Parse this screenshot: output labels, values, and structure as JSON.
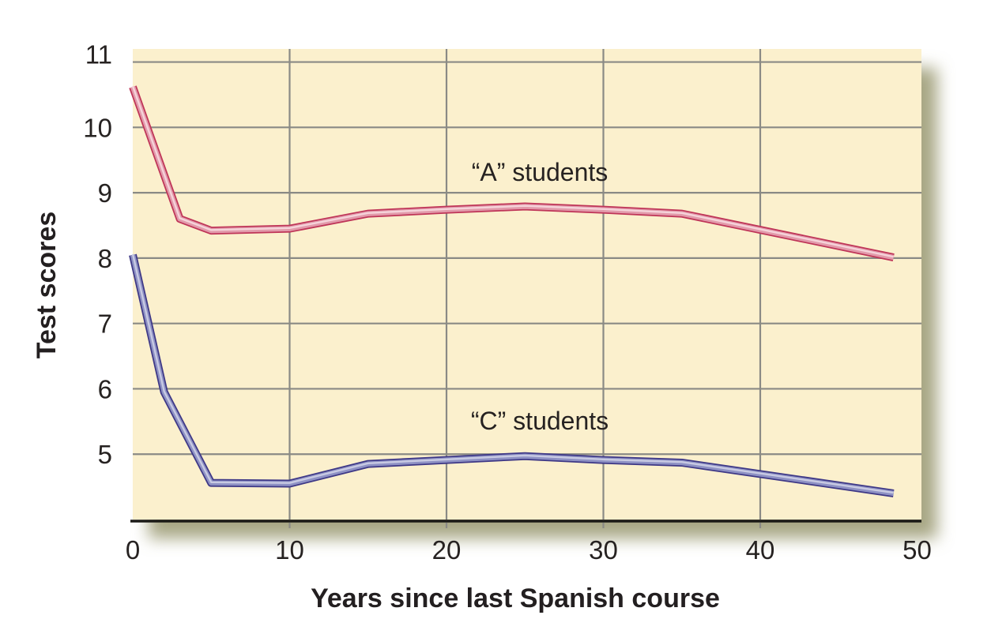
{
  "chart_data": {
    "type": "line",
    "title": "",
    "xlabel": "Years since last Spanish course",
    "ylabel": "Test scores",
    "xlim": [
      0,
      50
    ],
    "ylim": [
      4,
      11.2
    ],
    "xticks": [
      0,
      10,
      20,
      30,
      40,
      50
    ],
    "yticks": [
      5,
      6,
      7,
      8,
      9,
      10,
      11
    ],
    "grid": true,
    "legend_position": "inline-annotations",
    "plot_background": "#FBF0CD",
    "gridline_color": "#8A8A85",
    "axis_line_color": "#1B1A16",
    "text_color": "#262221",
    "shadow_color": "#98976F",
    "series": [
      {
        "name": "“A” students",
        "color": {
          "outer": "#BF3558",
          "mid": "#E29AAA",
          "light": "#F5D3DA"
        },
        "points": [
          [
            0,
            10.62
          ],
          [
            3,
            8.6
          ],
          [
            5,
            8.42
          ],
          [
            10,
            8.45
          ],
          [
            15,
            8.68
          ],
          [
            20,
            8.74
          ],
          [
            25,
            8.79
          ],
          [
            30,
            8.74
          ],
          [
            35,
            8.68
          ],
          [
            48.5,
            8.01
          ]
        ]
      },
      {
        "name": "“C” students",
        "color": {
          "outer": "#3E3886",
          "mid": "#8E91C4",
          "light": "#C8CAE3"
        },
        "points": [
          [
            0,
            8.05
          ],
          [
            2,
            5.95
          ],
          [
            5,
            4.56
          ],
          [
            10,
            4.55
          ],
          [
            15,
            4.85
          ],
          [
            20,
            4.91
          ],
          [
            25,
            4.97
          ],
          [
            30,
            4.91
          ],
          [
            35,
            4.87
          ],
          [
            48.5,
            4.4
          ]
        ]
      }
    ]
  }
}
